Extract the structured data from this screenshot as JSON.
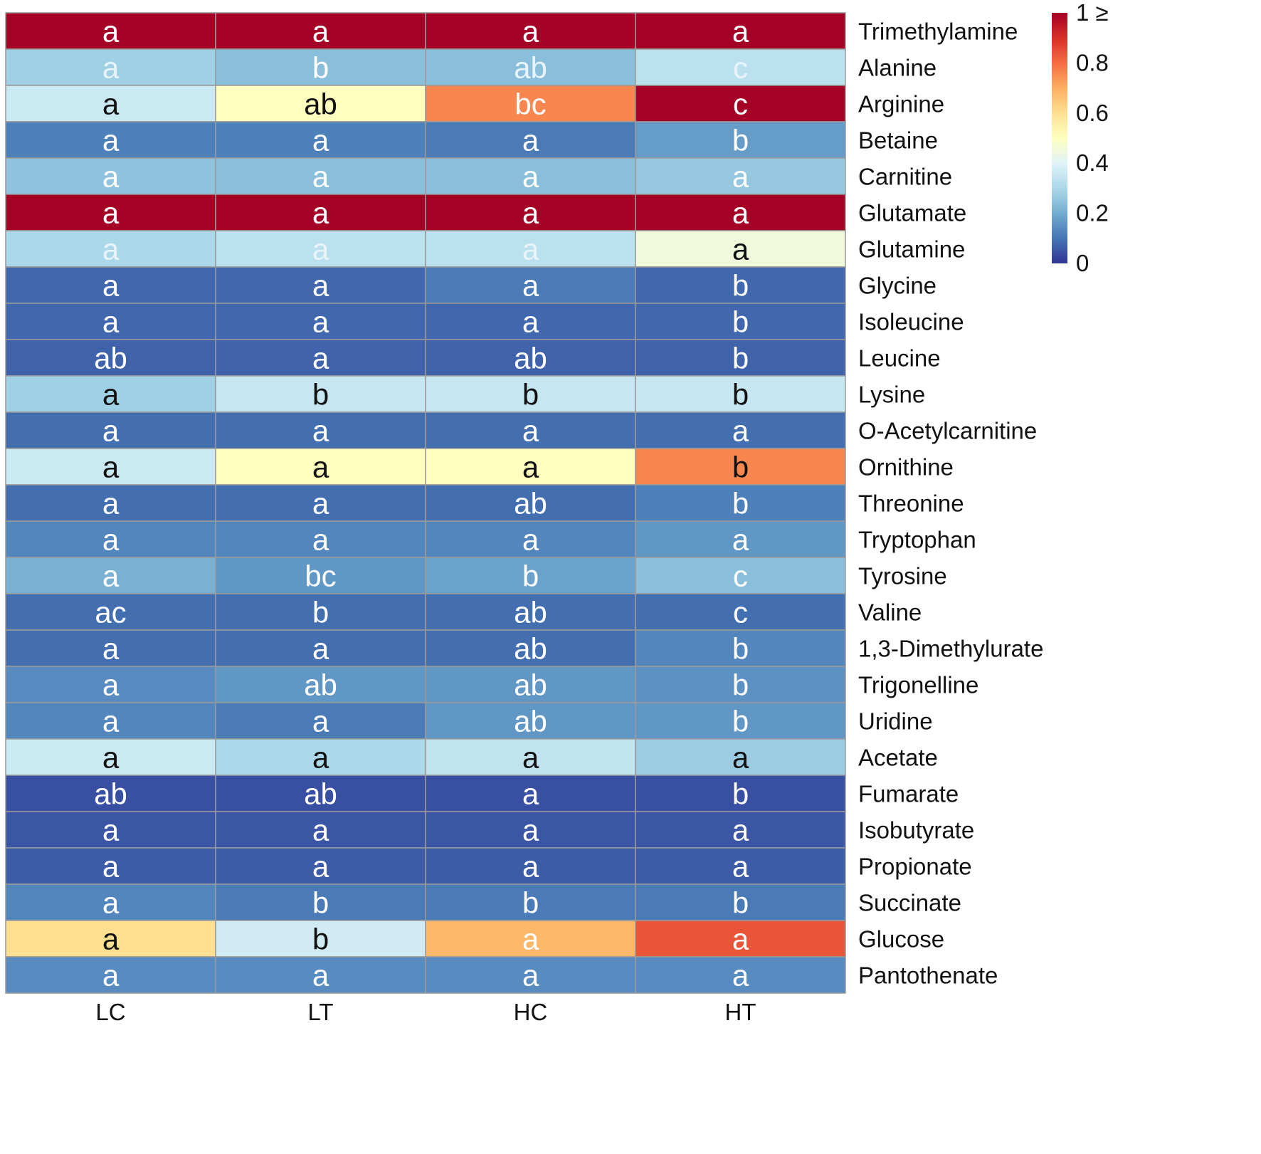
{
  "chart_data": {
    "type": "heatmap",
    "title": "",
    "columns": [
      "LC",
      "LT",
      "HC",
      "HT"
    ],
    "rows": [
      "Trimethylamine",
      "Alanine",
      "Arginine",
      "Betaine",
      "Carnitine",
      "Glutamate",
      "Glutamine",
      "Glycine",
      "Isoleucine",
      "Leucine",
      "Lysine",
      "O-Acetylcarnitine",
      "Ornithine",
      "Threonine",
      "Tryptophan",
      "Tyrosine",
      "Valine",
      "1,3-Dimethylurate",
      "Trigonelline",
      "Uridine",
      "Acetate",
      "Fumarate",
      "Isobutyrate",
      "Propionate",
      "Succinate",
      "Glucose",
      "Pantothenate"
    ],
    "values": [
      [
        1.0,
        1.0,
        1.0,
        1.0
      ],
      [
        0.28,
        0.24,
        0.24,
        0.33
      ],
      [
        0.36,
        0.5,
        0.76,
        1.0
      ],
      [
        0.12,
        0.12,
        0.11,
        0.17
      ],
      [
        0.25,
        0.24,
        0.24,
        0.26
      ],
      [
        1.0,
        1.0,
        1.0,
        1.0
      ],
      [
        0.3,
        0.33,
        0.33,
        0.45
      ],
      [
        0.08,
        0.08,
        0.11,
        0.08
      ],
      [
        0.08,
        0.08,
        0.08,
        0.08
      ],
      [
        0.07,
        0.07,
        0.07,
        0.07
      ],
      [
        0.28,
        0.35,
        0.35,
        0.35
      ],
      [
        0.09,
        0.09,
        0.09,
        0.09
      ],
      [
        0.36,
        0.5,
        0.5,
        0.76
      ],
      [
        0.09,
        0.09,
        0.09,
        0.12
      ],
      [
        0.13,
        0.13,
        0.13,
        0.16
      ],
      [
        0.21,
        0.16,
        0.18,
        0.24
      ],
      [
        0.09,
        0.09,
        0.09,
        0.09
      ],
      [
        0.09,
        0.09,
        0.09,
        0.13
      ],
      [
        0.14,
        0.16,
        0.16,
        0.15
      ],
      [
        0.13,
        0.11,
        0.16,
        0.16
      ],
      [
        0.36,
        0.3,
        0.34,
        0.27
      ],
      [
        0.04,
        0.04,
        0.04,
        0.04
      ],
      [
        0.05,
        0.05,
        0.05,
        0.05
      ],
      [
        0.06,
        0.06,
        0.06,
        0.06
      ],
      [
        0.13,
        0.11,
        0.11,
        0.11
      ],
      [
        0.6,
        0.37,
        0.68,
        0.84
      ],
      [
        0.14,
        0.14,
        0.14,
        0.14
      ]
    ],
    "letters": [
      [
        "a",
        "a",
        "a",
        "a"
      ],
      [
        "a",
        "b",
        "ab",
        "c"
      ],
      [
        "a",
        "ab",
        "bc",
        "c"
      ],
      [
        "a",
        "a",
        "a",
        "b"
      ],
      [
        "a",
        "a",
        "a",
        "a"
      ],
      [
        "a",
        "a",
        "a",
        "a"
      ],
      [
        "a",
        "a",
        "a",
        "a"
      ],
      [
        "a",
        "a",
        "a",
        "b"
      ],
      [
        "a",
        "a",
        "a",
        "b"
      ],
      [
        "ab",
        "a",
        "ab",
        "b"
      ],
      [
        "a",
        "b",
        "b",
        "b"
      ],
      [
        "a",
        "a",
        "a",
        "a"
      ],
      [
        "a",
        "a",
        "a",
        "b"
      ],
      [
        "a",
        "a",
        "ab",
        "b"
      ],
      [
        "a",
        "a",
        "a",
        "a"
      ],
      [
        "a",
        "bc",
        "b",
        "c"
      ],
      [
        "ac",
        "b",
        "ab",
        "c"
      ],
      [
        "a",
        "a",
        "ab",
        "b"
      ],
      [
        "a",
        "ab",
        "ab",
        "b"
      ],
      [
        "a",
        "a",
        "ab",
        "b"
      ],
      [
        "a",
        "a",
        "a",
        "a"
      ],
      [
        "ab",
        "ab",
        "a",
        "b"
      ],
      [
        "a",
        "a",
        "a",
        "a"
      ],
      [
        "a",
        "a",
        "a",
        "a"
      ],
      [
        "a",
        "b",
        "b",
        "b"
      ],
      [
        "a",
        "b",
        "a",
        "a"
      ],
      [
        "a",
        "a",
        "a",
        "a"
      ]
    ],
    "letter_colors": [
      [
        "white",
        "white",
        "white",
        "white"
      ],
      [
        "light",
        "white",
        "light",
        "light"
      ],
      [
        "black",
        "black",
        "white",
        "white"
      ],
      [
        "white",
        "white",
        "white",
        "white"
      ],
      [
        "white",
        "white",
        "white",
        "white"
      ],
      [
        "white",
        "white",
        "white",
        "white"
      ],
      [
        "light",
        "light",
        "light",
        "black"
      ],
      [
        "white",
        "white",
        "white",
        "white"
      ],
      [
        "white",
        "white",
        "white",
        "white"
      ],
      [
        "white",
        "white",
        "white",
        "white"
      ],
      [
        "black",
        "black",
        "black",
        "black"
      ],
      [
        "white",
        "white",
        "white",
        "white"
      ],
      [
        "black",
        "black",
        "black",
        "black"
      ],
      [
        "white",
        "white",
        "white",
        "white"
      ],
      [
        "white",
        "white",
        "white",
        "white"
      ],
      [
        "white",
        "white",
        "white",
        "white"
      ],
      [
        "white",
        "white",
        "white",
        "white"
      ],
      [
        "white",
        "white",
        "white",
        "white"
      ],
      [
        "white",
        "white",
        "white",
        "white"
      ],
      [
        "white",
        "white",
        "white",
        "white"
      ],
      [
        "black",
        "black",
        "black",
        "black"
      ],
      [
        "white",
        "white",
        "white",
        "white"
      ],
      [
        "white",
        "white",
        "white",
        "white"
      ],
      [
        "white",
        "white",
        "white",
        "white"
      ],
      [
        "white",
        "white",
        "white",
        "white"
      ],
      [
        "black",
        "black",
        "white",
        "white"
      ],
      [
        "white",
        "white",
        "white",
        "white"
      ]
    ],
    "legend": {
      "range": [
        0,
        1
      ],
      "ticks": [
        0,
        0.2,
        0.4,
        0.6,
        0.8
      ],
      "tick_labels": [
        "0",
        "0.2",
        "0.4",
        "0.6",
        "0.8"
      ],
      "top_label": "1 ≥",
      "stops": [
        "#313695",
        "#4575b4",
        "#74add1",
        "#abd9e9",
        "#e0f3f8",
        "#ffffbf",
        "#fee090",
        "#fdae61",
        "#f46d43",
        "#d73027",
        "#a50026"
      ]
    },
    "text_colors": {
      "white": "#ffffff",
      "light": "#e8f4fa",
      "black": "#111111"
    },
    "grid_color": "#9a9a9a"
  }
}
